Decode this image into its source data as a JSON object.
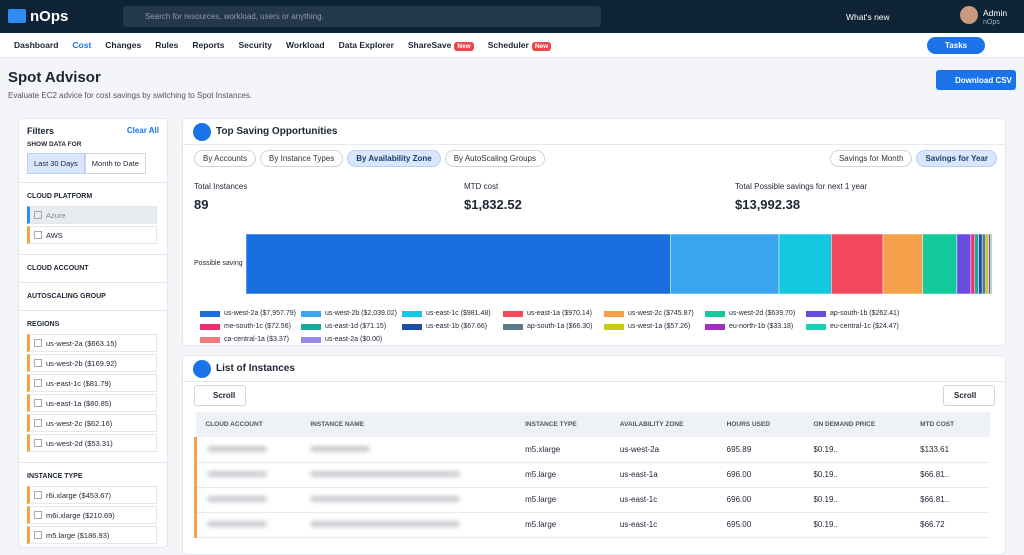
{
  "header": {
    "logo": "nOps",
    "search": "Search for resources, workload, users or anything.",
    "whats_new": "What's new",
    "user": "Admin",
    "org": "nOps"
  },
  "nav": {
    "items": [
      "Dashboard",
      "Cost",
      "Changes",
      "Rules",
      "Reports",
      "Security",
      "Workload",
      "Data Explorer",
      "ShareSave",
      "Scheduler"
    ],
    "badge": "New",
    "tasks": "Tasks"
  },
  "page": {
    "title": "Spot Advisor",
    "subtitle": "Evaluate EC2 advice for cost savings by switching to Spot Instances.",
    "download": "Download CSV"
  },
  "filters": {
    "title": "Filters",
    "clear": "Clear All",
    "show_data_for": "SHOW DATA FOR",
    "periods": [
      "Last 30 Days",
      "Month to Date"
    ],
    "cloud_platform": "CLOUD PLATFORM",
    "platforms": [
      "Azure",
      "AWS"
    ],
    "cloud_account": "CLOUD ACCOUNT",
    "autoscaling_group": "AUTOSCALING GROUP",
    "regions_title": "REGIONS",
    "regions": [
      "us-west-2a ($663.15)",
      "us-west-2b ($169.92)",
      "us-east-1c ($81.79)",
      "us-east-1a ($80.85)",
      "us-west-2c ($62.16)",
      "us-west-2d ($53.31)"
    ],
    "instance_type_title": "INSTANCE TYPE",
    "instance_types": [
      "r6i.xlarge ($453.67)",
      "m6i.xlarge ($210.69)",
      "m5.large ($186.93)"
    ]
  },
  "savings": {
    "title": "Top Saving Opportunities",
    "tabs": [
      "By Accounts",
      "By Instance Types",
      "By Availability Zone",
      "By AutoScaling Groups"
    ],
    "modes": [
      "Savings for Month",
      "Savings for Year"
    ],
    "stats": [
      {
        "label": "Total Instances",
        "value": "89"
      },
      {
        "label": "MTD cost",
        "value": "$1,832.52"
      },
      {
        "label": "Total Possible savings for next 1 year",
        "value": "$13,992.38"
      }
    ],
    "bar_label": "Possible saving",
    "segments": [
      {
        "label": "us-west-2a ($7,957.79)",
        "value": 7957.79,
        "color": "#1a6fe0"
      },
      {
        "label": "us-west-2b ($2,039.02)",
        "value": 2039.02,
        "color": "#3aa6f0"
      },
      {
        "label": "us-east-1c ($981.48)",
        "value": 981.48,
        "color": "#14c8e0"
      },
      {
        "label": "us-east-1a ($970.14)",
        "value": 970.14,
        "color": "#f2495c"
      },
      {
        "label": "us-west-2c ($745.87)",
        "value": 745.87,
        "color": "#f5a04a"
      },
      {
        "label": "us-west-2d ($639.70)",
        "value": 639.7,
        "color": "#14c99a"
      },
      {
        "label": "ap-south-1b ($262.41)",
        "value": 262.41,
        "color": "#6a4be0"
      },
      {
        "label": "me-south-1c ($72.56)",
        "value": 72.56,
        "color": "#f0306a"
      },
      {
        "label": "us-east-1d ($71.15)",
        "value": 71.15,
        "color": "#1aa89a"
      },
      {
        "label": "us-east-1b ($67.66)",
        "value": 67.66,
        "color": "#1d4fa0"
      },
      {
        "label": "ap-south-1a ($66.30)",
        "value": 66.3,
        "color": "#5a7a8a"
      },
      {
        "label": "us-west-1a ($57.26)",
        "value": 57.26,
        "color": "#c8c81a"
      },
      {
        "label": "eu-north-1b ($33.18)",
        "value": 33.18,
        "color": "#a030c0"
      },
      {
        "label": "eu-central-1c ($24.47)",
        "value": 24.47,
        "color": "#19d0b0"
      },
      {
        "label": "ca-central-1a ($3.37)",
        "value": 3.37,
        "color": "#f07a7a"
      },
      {
        "label": "us-east-2a ($0.00)",
        "value": 0.0,
        "color": "#9a8ae8"
      }
    ]
  },
  "instances": {
    "title": "List of Instances",
    "scroll_left": "Scroll",
    "scroll_right": "Scroll",
    "columns": [
      "CLOUD ACCOUNT",
      "INSTANCE NAME",
      "INSTANCE TYPE",
      "AVAILABILITY ZONE",
      "HOURS USED",
      "ON DEMAND PRICE",
      "MTD COST"
    ],
    "rows": [
      [
        "m5.xlarge",
        "us-west-2a",
        "695.89",
        "$0.19..",
        "$133.61"
      ],
      [
        "m5.large",
        "us-east-1a",
        "696.00",
        "$0.19..",
        "$66.81.."
      ],
      [
        "m5.large",
        "us-east-1c",
        "696.00",
        "$0.19..",
        "$66.81.."
      ],
      [
        "m5.large",
        "us-east-1c",
        "695.00",
        "$0.19..",
        "$66.72"
      ]
    ]
  }
}
